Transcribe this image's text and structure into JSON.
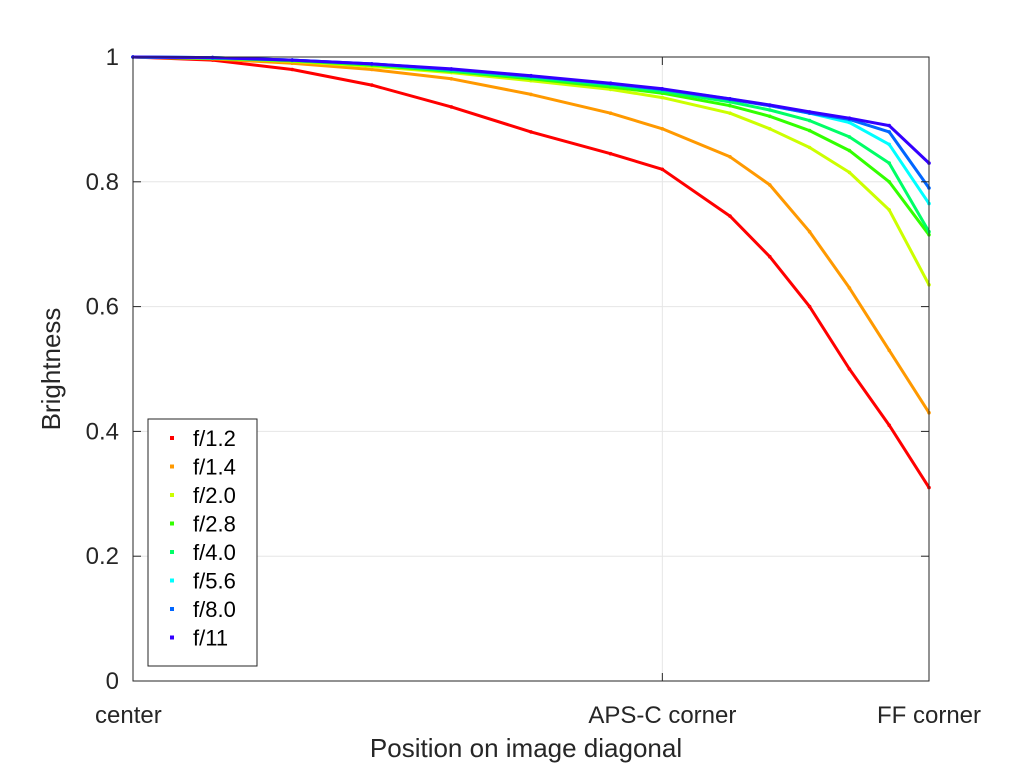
{
  "chart_data": {
    "type": "scatter",
    "xlabel": "Position on image diagonal",
    "ylabel": "Brightness",
    "xlim": [
      0,
      1
    ],
    "ylim": [
      0,
      1
    ],
    "x_ticks": [
      {
        "value": 0,
        "label": "center"
      },
      {
        "value": 0.665,
        "label": "APS-C corner"
      },
      {
        "value": 1,
        "label": "FF corner"
      }
    ],
    "y_ticks": [
      {
        "value": 0,
        "label": "0"
      },
      {
        "value": 0.2,
        "label": "0.2"
      },
      {
        "value": 0.4,
        "label": "0.4"
      },
      {
        "value": 0.6,
        "label": "0.6"
      },
      {
        "value": 0.8,
        "label": "0.8"
      },
      {
        "value": 1,
        "label": "1"
      }
    ],
    "grid": true,
    "legend_position": "bottom-left",
    "series": [
      {
        "name": "f/1.2",
        "color": "#ff0000",
        "x": [
          0,
          0.1,
          0.2,
          0.3,
          0.4,
          0.5,
          0.6,
          0.665,
          0.75,
          0.8,
          0.85,
          0.9,
          0.95,
          1.0
        ],
        "y": [
          1.0,
          0.995,
          0.98,
          0.955,
          0.92,
          0.88,
          0.845,
          0.82,
          0.745,
          0.68,
          0.6,
          0.5,
          0.41,
          0.31
        ]
      },
      {
        "name": "f/1.4",
        "color": "#ff9900",
        "x": [
          0,
          0.1,
          0.2,
          0.3,
          0.4,
          0.5,
          0.6,
          0.665,
          0.75,
          0.8,
          0.85,
          0.9,
          0.95,
          1.0
        ],
        "y": [
          1.0,
          0.997,
          0.99,
          0.98,
          0.965,
          0.94,
          0.91,
          0.885,
          0.84,
          0.795,
          0.72,
          0.63,
          0.53,
          0.43
        ]
      },
      {
        "name": "f/2.0",
        "color": "#ccff00",
        "x": [
          0,
          0.1,
          0.2,
          0.3,
          0.4,
          0.5,
          0.6,
          0.665,
          0.75,
          0.8,
          0.85,
          0.9,
          0.95,
          1.0
        ],
        "y": [
          1.0,
          0.998,
          0.993,
          0.985,
          0.975,
          0.962,
          0.948,
          0.935,
          0.91,
          0.885,
          0.855,
          0.815,
          0.755,
          0.635
        ]
      },
      {
        "name": "f/2.8",
        "color": "#33ff00",
        "x": [
          0,
          0.1,
          0.2,
          0.3,
          0.4,
          0.5,
          0.6,
          0.665,
          0.75,
          0.8,
          0.85,
          0.9,
          0.95,
          1.0
        ],
        "y": [
          1.0,
          0.998,
          0.994,
          0.987,
          0.977,
          0.965,
          0.952,
          0.942,
          0.922,
          0.905,
          0.882,
          0.85,
          0.8,
          0.715
        ]
      },
      {
        "name": "f/4.0",
        "color": "#00ff66",
        "x": [
          0,
          0.1,
          0.2,
          0.3,
          0.4,
          0.5,
          0.6,
          0.665,
          0.75,
          0.8,
          0.85,
          0.9,
          0.95,
          1.0
        ],
        "y": [
          1.0,
          0.998,
          0.995,
          0.988,
          0.978,
          0.967,
          0.955,
          0.945,
          0.928,
          0.915,
          0.898,
          0.872,
          0.83,
          0.72
        ]
      },
      {
        "name": "f/5.6",
        "color": "#00ffff",
        "x": [
          0,
          0.1,
          0.2,
          0.3,
          0.4,
          0.5,
          0.6,
          0.665,
          0.75,
          0.8,
          0.85,
          0.9,
          0.95,
          1.0
        ],
        "y": [
          1.0,
          0.999,
          0.995,
          0.989,
          0.98,
          0.969,
          0.957,
          0.948,
          0.933,
          0.922,
          0.91,
          0.895,
          0.86,
          0.765
        ]
      },
      {
        "name": "f/8.0",
        "color": "#0066ff",
        "x": [
          0,
          0.1,
          0.2,
          0.3,
          0.4,
          0.5,
          0.6,
          0.665,
          0.75,
          0.8,
          0.85,
          0.9,
          0.95,
          1.0
        ],
        "y": [
          1.0,
          0.999,
          0.995,
          0.989,
          0.98,
          0.969,
          0.957,
          0.948,
          0.932,
          0.922,
          0.91,
          0.9,
          0.88,
          0.79
        ]
      },
      {
        "name": "f/11",
        "color": "#3300ff",
        "x": [
          0,
          0.1,
          0.2,
          0.3,
          0.4,
          0.5,
          0.6,
          0.665,
          0.75,
          0.8,
          0.85,
          0.9,
          0.95,
          1.0
        ],
        "y": [
          1.0,
          0.999,
          0.995,
          0.989,
          0.981,
          0.97,
          0.958,
          0.949,
          0.933,
          0.923,
          0.912,
          0.902,
          0.89,
          0.83
        ]
      }
    ]
  }
}
